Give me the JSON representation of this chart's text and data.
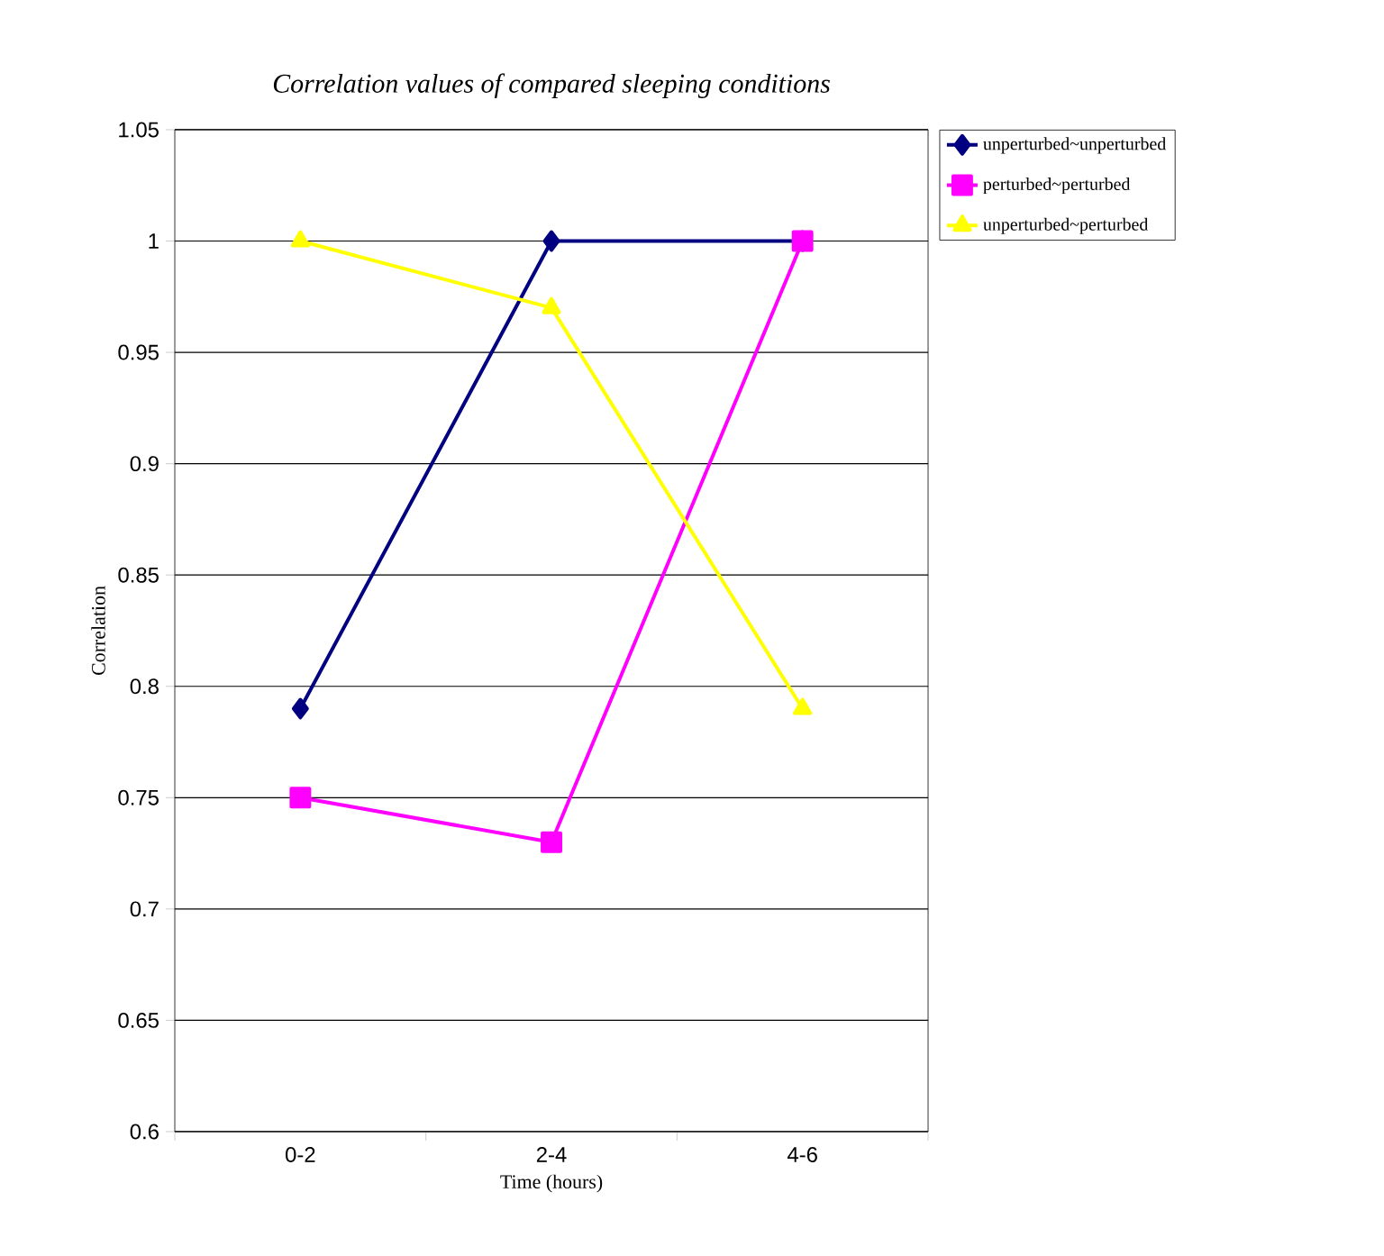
{
  "chart_data": {
    "type": "line",
    "title": "Correlation values of compared sleeping conditions",
    "xlabel": "Time (hours)",
    "ylabel": "Correlation",
    "categories": [
      "0-2",
      "2-4",
      "4-6"
    ],
    "series": [
      {
        "name": "unperturbed~unperturbed",
        "color": "#000080",
        "marker": "diamond",
        "values": [
          0.79,
          1,
          1
        ]
      },
      {
        "name": "perturbed~perturbed",
        "color": "#ff00ff",
        "marker": "square",
        "values": [
          0.75,
          0.73,
          1
        ]
      },
      {
        "name": "unperturbed~perturbed",
        "color": "#ffff00",
        "marker": "triangle",
        "values": [
          1,
          0.97,
          0.79
        ]
      }
    ],
    "ylim": [
      0.6,
      1.05
    ],
    "yticks": [
      0.6,
      0.65,
      0.7,
      0.75,
      0.8,
      0.85,
      0.9,
      0.95,
      1,
      1.05
    ],
    "grid": "y",
    "legend": "top right"
  }
}
